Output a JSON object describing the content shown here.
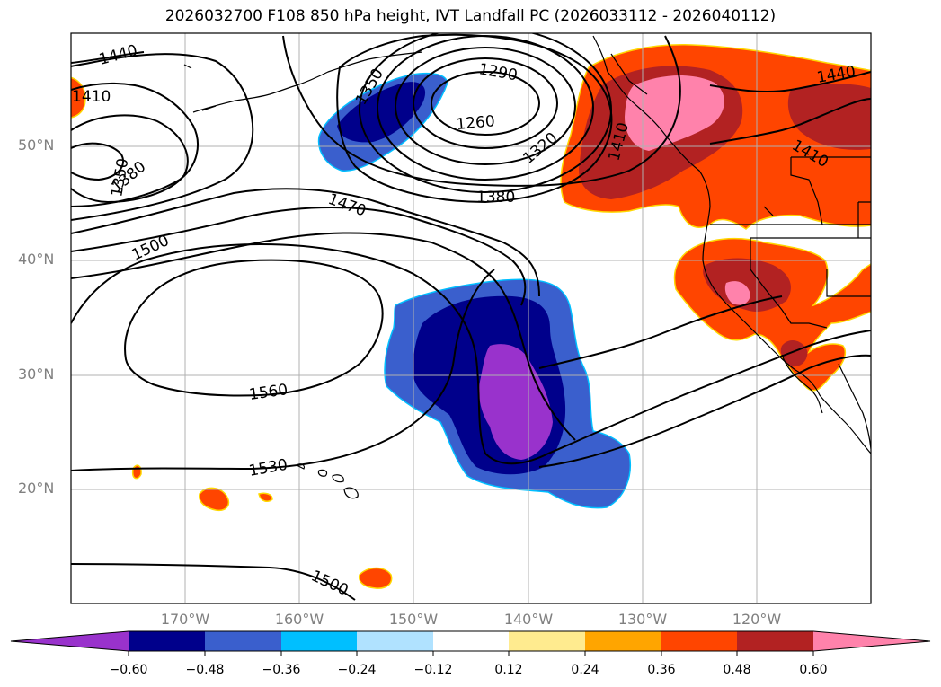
{
  "title": "2026032700 F108 850 hPa height, IVT Landfall PC (2026033112 - 2026040112)",
  "lat_labels": [
    "50°N",
    "40°N",
    "30°N",
    "20°N"
  ],
  "lon_labels": [
    "170°W",
    "160°W",
    "150°W",
    "140°W",
    "130°W",
    "120°W"
  ],
  "contour_labels": [
    "1440",
    "1410",
    "1350",
    "1380",
    "1350",
    "1290",
    "1260",
    "1320",
    "1410",
    "1440",
    "1410",
    "1380",
    "1470",
    "1500",
    "1560",
    "1530",
    "1500"
  ],
  "colorbar": {
    "ticks": [
      "−0.60",
      "−0.48",
      "−0.36",
      "−0.24",
      "−0.12",
      "0.12",
      "0.24",
      "0.36",
      "0.48",
      "0.60"
    ],
    "colors": {
      "under": "#9932cc",
      "b1": "#00008b",
      "b2": "#3a5fcd",
      "b3": "#00bfff",
      "b4": "#b0e2ff",
      "b5": "#ffffff",
      "b6": "#ffeb8f",
      "b7": "#ffa500",
      "b8": "#ff4500",
      "b9": "#b22222",
      "over": "#ff82ab"
    }
  }
}
